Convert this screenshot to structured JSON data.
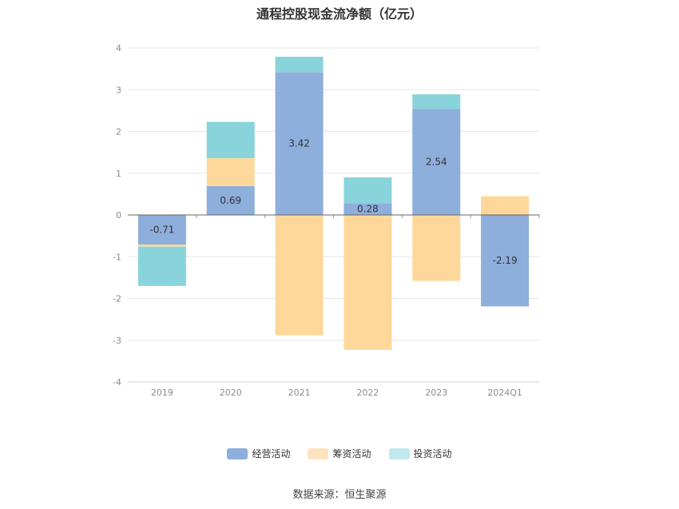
{
  "title": "通程控股现金流净额（亿元）",
  "source": "数据来源：恒生聚源",
  "chart_data": {
    "type": "bar",
    "stacked": true,
    "categories": [
      "2019",
      "2020",
      "2021",
      "2022",
      "2023",
      "2024Q1"
    ],
    "ylim": [
      -4,
      4
    ],
    "yticks": [
      4,
      3,
      2,
      1,
      0,
      -1,
      -2,
      -3,
      -4
    ],
    "grid": true,
    "legend_position": "bottom",
    "series": [
      {
        "name": "经营活动",
        "color": "#8eaedc",
        "values": [
          -0.71,
          0.69,
          3.42,
          0.28,
          2.54,
          -2.19
        ]
      },
      {
        "name": "筹资活动",
        "color": "#fed89b",
        "values": [
          -0.05,
          0.67,
          -2.88,
          -3.23,
          -1.58,
          0.45
        ]
      },
      {
        "name": "投资活动",
        "color": "#88d4da",
        "values": [
          -0.94,
          0.87,
          0.37,
          0.62,
          0.35,
          0.0
        ]
      }
    ],
    "data_labels": [
      "-0.71",
      "0.69",
      "3.42",
      "0.28",
      "2.54",
      "-2.19"
    ]
  },
  "legend_colors": [
    "#8eaedc",
    "#fde4bf",
    "#bfe9ec"
  ]
}
